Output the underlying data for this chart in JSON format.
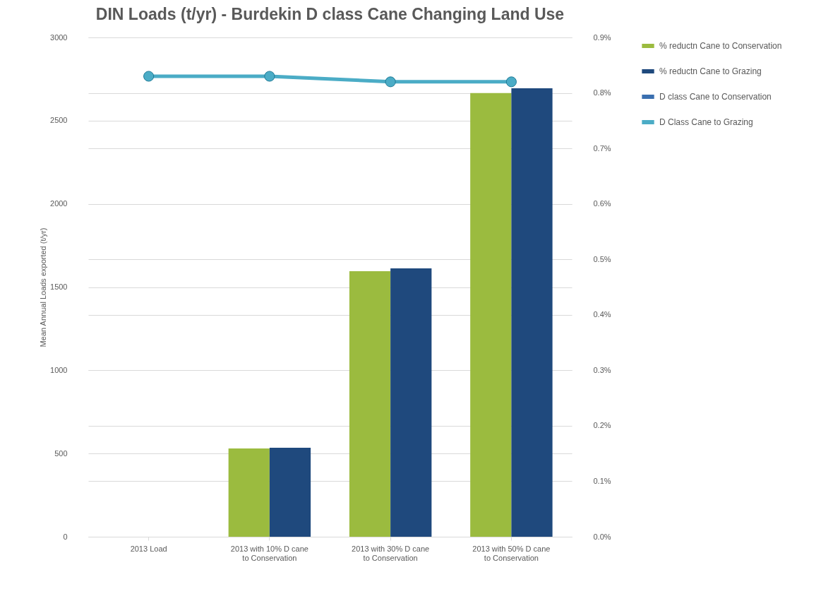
{
  "chart_data": {
    "type": "bar",
    "title": "DIN Loads (t/yr) - Burdekin D class Cane Changing Land Use",
    "ylabel": "Mean Annual Loads exported (t/yr)",
    "categories": [
      "2013 Load",
      "2013 with 10% D cane to Conservation",
      "2013 with 30% D cane to Conservation",
      "2013 with 50% D cane to Conservation"
    ],
    "series": [
      {
        "name": "% reductn Cane to Conservation",
        "color": "#9bbb3f",
        "values": [
          null,
          530,
          1595,
          2666
        ]
      },
      {
        "name": "% reductn Cane to Grazing",
        "color": "#1f497d",
        "values": [
          null,
          535,
          1612,
          2694
        ]
      },
      {
        "name": "D class Cane to Conservation",
        "type": "line",
        "axis": "y2",
        "color": "#3a6fb0",
        "values": [
          null,
          null,
          null,
          null
        ]
      },
      {
        "name": "D Class Cane to Grazing",
        "type": "line",
        "axis": "y2",
        "color": "#4bacc6",
        "values": [
          0.83,
          0.83,
          0.82,
          0.82
        ]
      }
    ],
    "ylim": [
      0,
      3000
    ],
    "yticks": [
      0,
      500,
      1000,
      1500,
      2000,
      2500,
      3000
    ],
    "y2lim": [
      0,
      0.9
    ],
    "y2ticks": [
      {
        "value": 0,
        "label": "0.0%"
      },
      {
        "value": 0.1,
        "label": "0.1%"
      },
      {
        "value": 0.2,
        "label": "0.2%"
      },
      {
        "value": 0.3,
        "label": "0.3%"
      },
      {
        "value": 0.4,
        "label": "0.4%"
      },
      {
        "value": 0.5,
        "label": "0.5%"
      },
      {
        "value": 0.6,
        "label": "0.6%"
      },
      {
        "value": 0.7,
        "label": "0.7%"
      },
      {
        "value": 0.8,
        "label": "0.8%"
      },
      {
        "value": 0.9,
        "label": "0.9%"
      }
    ],
    "grid": "y",
    "legend": "right",
    "marker": "circle"
  }
}
